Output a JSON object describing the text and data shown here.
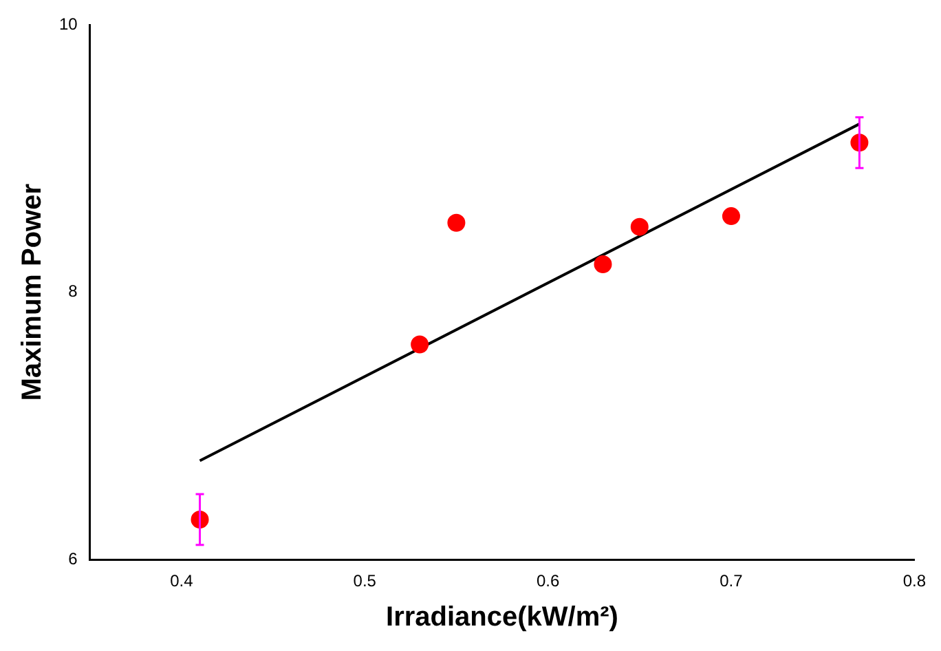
{
  "chart_data": {
    "type": "scatter",
    "xlabel": "Irradiance(kW/m²)",
    "ylabel": "Maximum Power",
    "xlim": [
      0.35,
      0.8
    ],
    "xticks": [
      0.4,
      0.5,
      0.6,
      0.7,
      0.8
    ],
    "ylim": [
      6,
      10
    ],
    "yticks": [
      6,
      8,
      10
    ],
    "grid": false,
    "legend": false,
    "series": [
      {
        "type": "scatter",
        "color": "#ff0000",
        "marker": "circle",
        "x": [
          0.41,
          0.53,
          0.55,
          0.63,
          0.65,
          0.7,
          0.77
        ],
        "values": [
          6.3,
          7.61,
          8.52,
          8.21,
          8.49,
          8.57,
          9.12
        ],
        "errors": [
          0.19,
          null,
          null,
          null,
          null,
          null,
          0.19
        ]
      },
      {
        "type": "line",
        "color": "#000000",
        "line_style": "solid",
        "x": [
          0.41,
          0.77
        ],
        "values": [
          6.74,
          9.26
        ]
      }
    ]
  }
}
